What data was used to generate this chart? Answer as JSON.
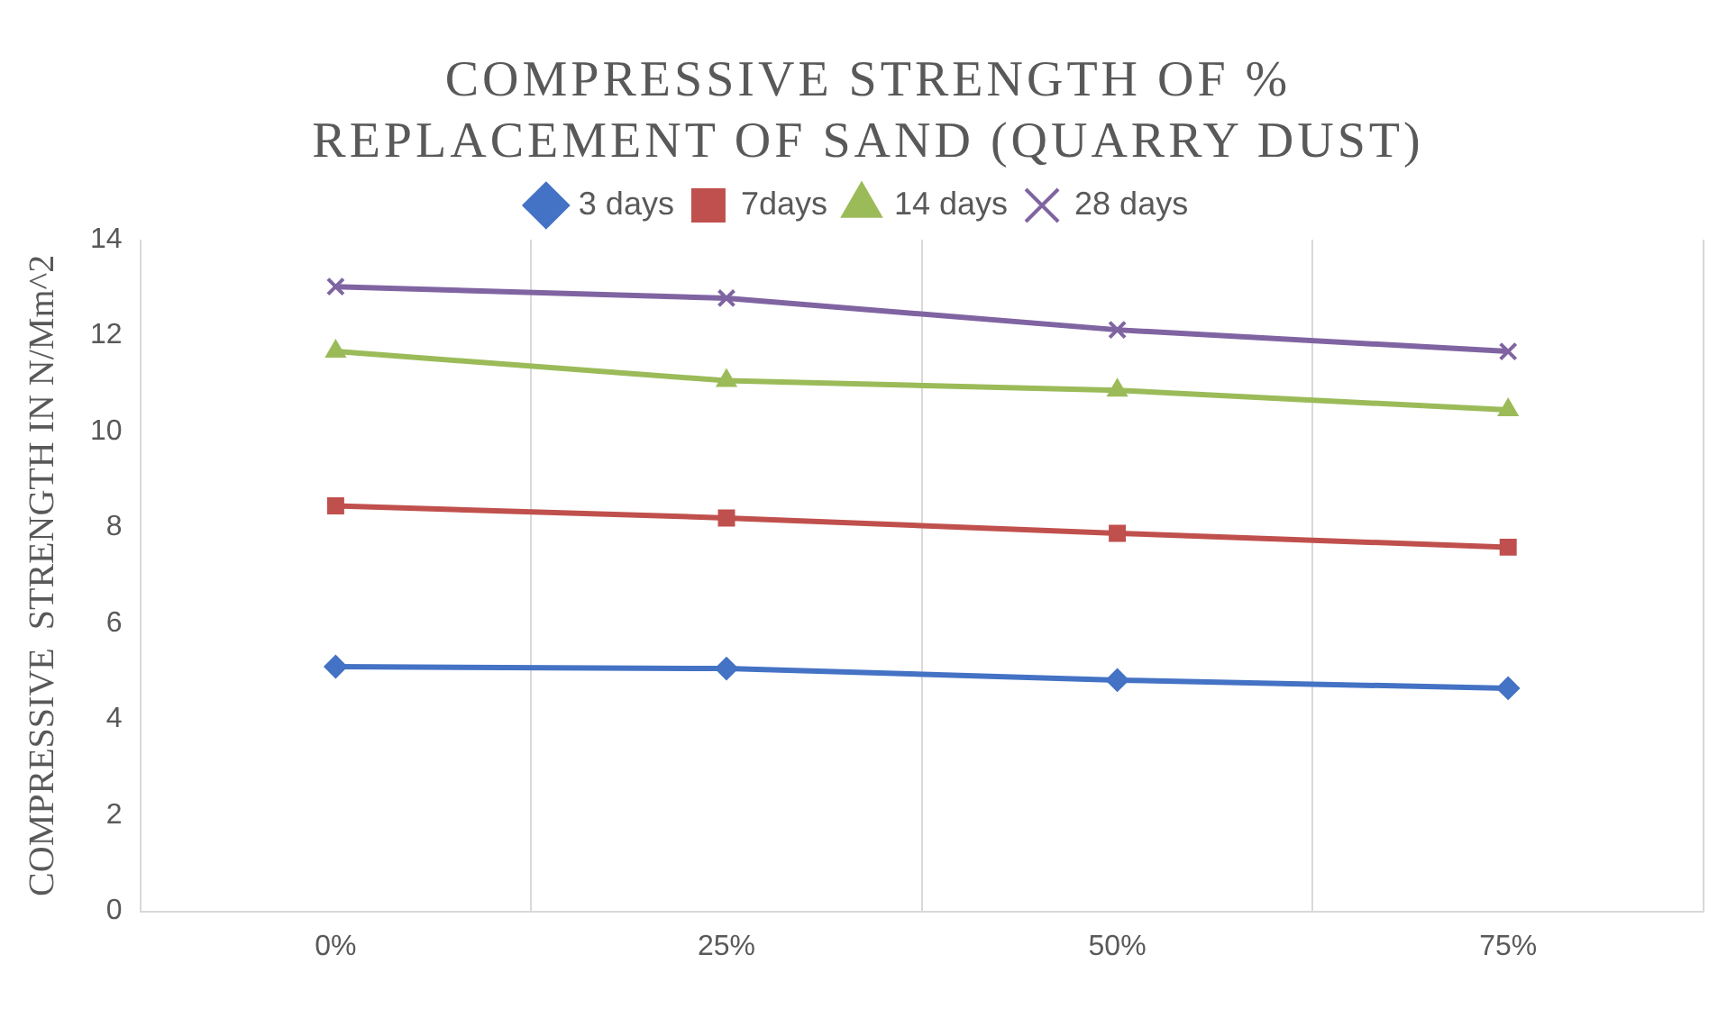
{
  "chart_data": {
    "type": "line",
    "title": "COMPRESSIVE STRENGTH OF % REPLACEMENT OF SAND (QUARRY DUST)",
    "ylabel": "COMPRESSIVE  STRENGTH IN N/Mm^2",
    "categories": [
      "0%",
      "25%",
      "50%",
      "75%"
    ],
    "series": [
      {
        "name": "3 days",
        "color": "#4472c4",
        "marker": "diamond",
        "values": [
          5.1,
          5.06,
          4.82,
          4.65
        ]
      },
      {
        "name": "7days",
        "color": "#c0504d",
        "marker": "square",
        "values": [
          8.45,
          8.2,
          7.88,
          7.59
        ]
      },
      {
        "name": "14 days",
        "color": "#9bbb59",
        "marker": "triangle",
        "values": [
          11.67,
          11.06,
          10.86,
          10.45
        ]
      },
      {
        "name": "28 days",
        "color": "#8064a2",
        "marker": "cross",
        "values": [
          13.02,
          12.78,
          12.12,
          11.67
        ]
      }
    ],
    "ylim": [
      0,
      14
    ],
    "yticks": [
      0,
      2,
      4,
      6,
      8,
      10,
      12,
      14
    ],
    "grid": "x",
    "legend": "top",
    "line_style": "solid"
  }
}
